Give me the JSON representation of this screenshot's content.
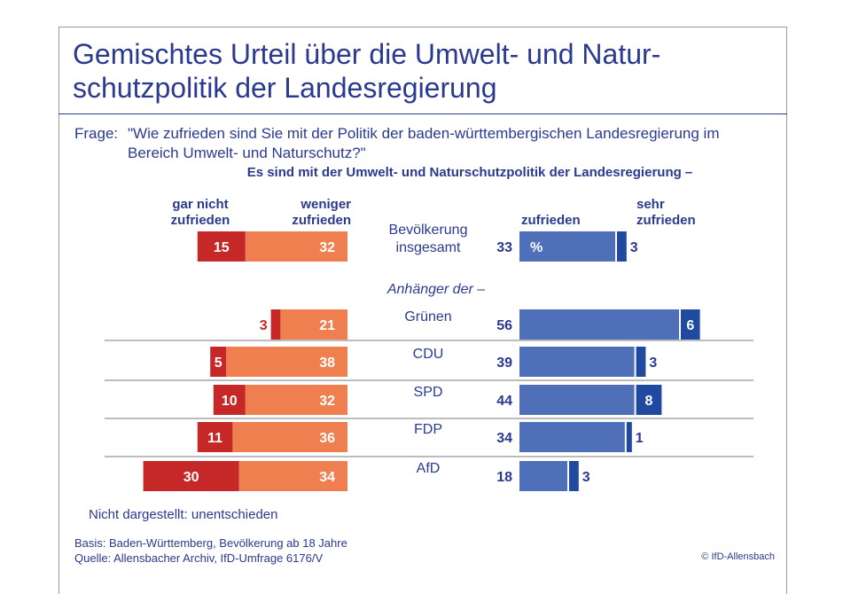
{
  "title": "Gemischtes Urteil über die Umwelt- und Natur-\nschutzpolitik der Landesregierung",
  "question_label": "Frage:",
  "question_text": "\"Wie zufrieden sind Sie mit der Politik der baden-württembergischen Landesregierung im Bereich Umwelt- und Naturschutz?\"",
  "intro": "Es sind mit der Umwelt- und Naturschutzpolitik der Landesregierung –",
  "headers": {
    "gar_nicht": "gar nicht\nzufrieden",
    "weniger": "weniger\nzufrieden",
    "zufrieden": "zufrieden",
    "sehr": "sehr\nzufrieden"
  },
  "group_label": "Anhänger der –",
  "footnote": "Nicht dargestellt: unentschieden",
  "basis": "Basis: Baden-Württemberg, Bevölkerung ab 18 Jahre",
  "source": "Quelle: Allensbacher Archiv, IfD-Umfrage 6176/V",
  "copyright": "© IfD-Allensbach",
  "colors": {
    "gar_nicht": "#c62828",
    "weniger": "#ef7f4e",
    "zufrieden": "#4f6fb8",
    "sehr": "#1f4aa0",
    "text": "#2b3a8f"
  },
  "chart_data": {
    "type": "bar",
    "orientation": "horizontal-diverging",
    "title": "Gemischtes Urteil über die Umwelt- und Naturschutzpolitik der Landesregierung",
    "unit_marker": "%",
    "categories": [
      "Bevölkerung\ninsgesamt",
      "Grünen",
      "CDU",
      "SPD",
      "FDP",
      "AfD"
    ],
    "total_labels": [
      33,
      56,
      39,
      44,
      34,
      18
    ],
    "series": [
      {
        "name": "gar nicht zufrieden",
        "values": [
          15,
          3,
          5,
          10,
          11,
          30
        ]
      },
      {
        "name": "weniger zufrieden",
        "values": [
          32,
          21,
          38,
          32,
          36,
          34
        ]
      },
      {
        "name": "zufrieden",
        "values": [
          30,
          50,
          36,
          36,
          33,
          15
        ]
      },
      {
        "name": "sehr zufrieden",
        "values": [
          3,
          6,
          3,
          8,
          1,
          3
        ]
      }
    ]
  }
}
